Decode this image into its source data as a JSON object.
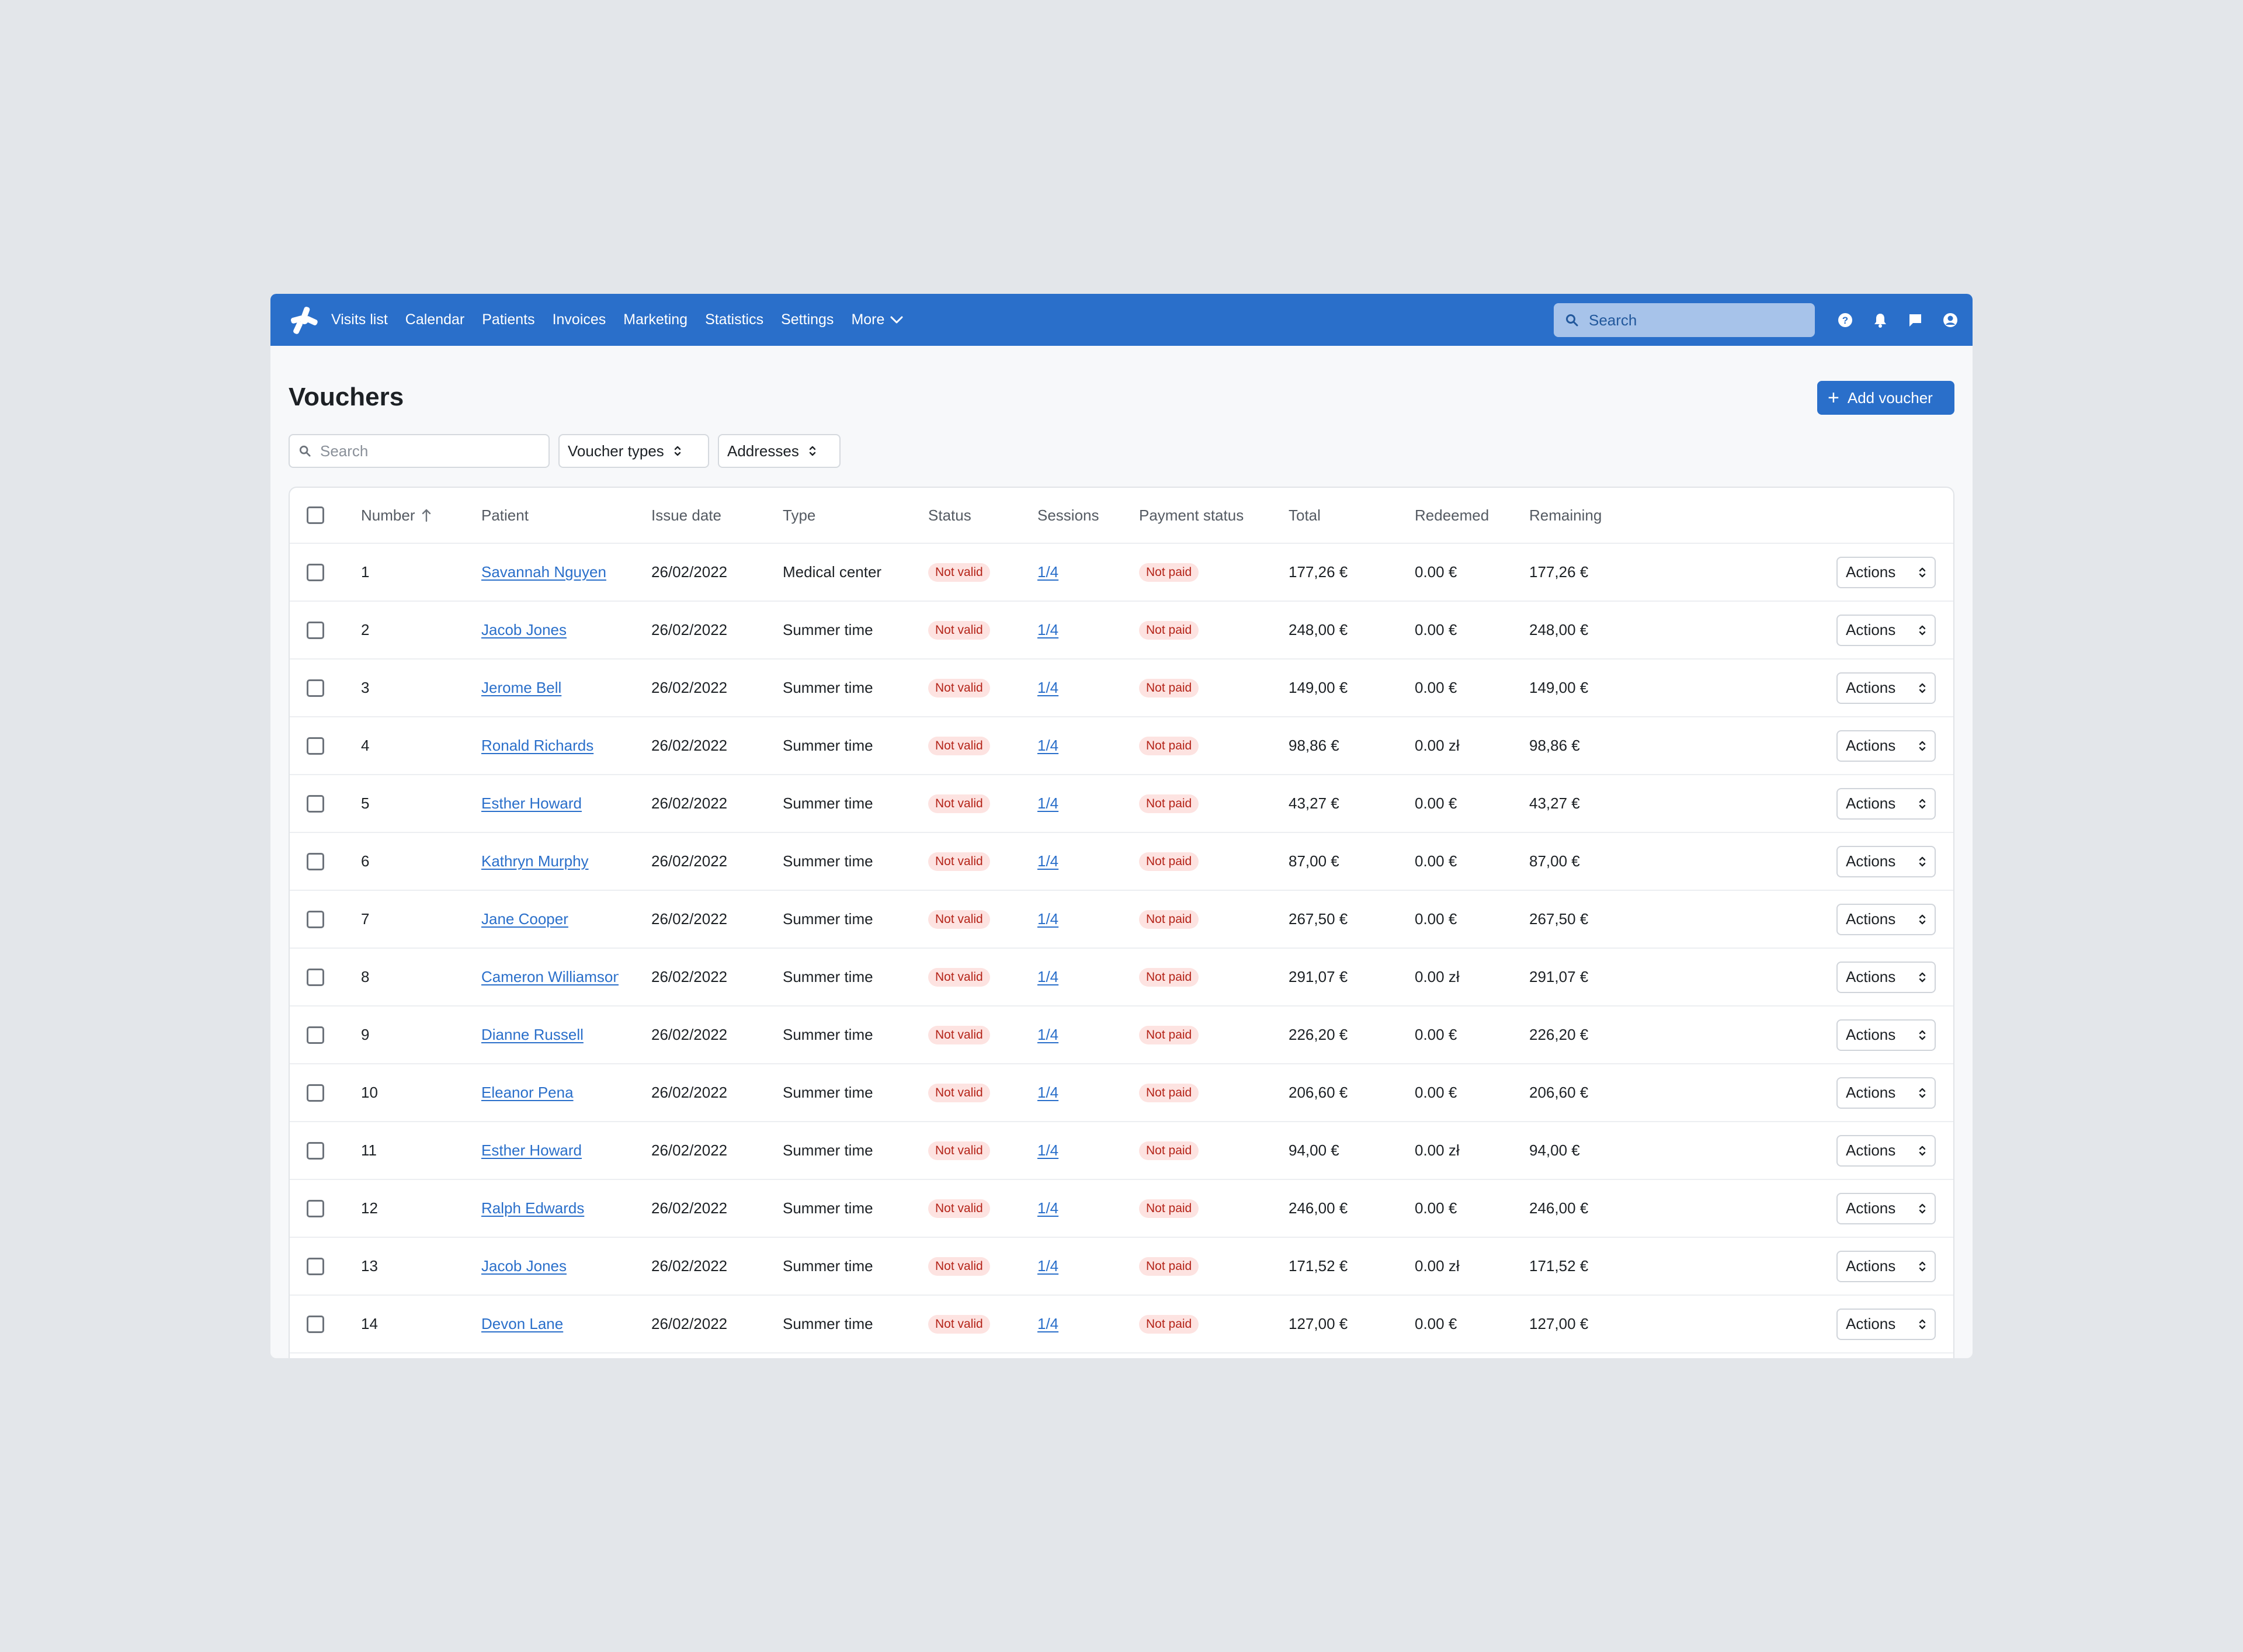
{
  "nav": {
    "items": [
      "Visits list",
      "Calendar",
      "Patients",
      "Invoices",
      "Marketing",
      "Statistics",
      "Settings"
    ],
    "more_label": "More",
    "search_placeholder": "Search"
  },
  "page": {
    "title": "Vouchers",
    "add_button": "Add voucher"
  },
  "filters": {
    "search_placeholder": "Search",
    "voucher_types": "Voucher types",
    "addresses": "Addresses"
  },
  "table": {
    "columns": {
      "number": "Number",
      "patient": "Patient",
      "issue_date": "Issue date",
      "type": "Type",
      "status": "Status",
      "sessions": "Sessions",
      "payment_status": "Payment status",
      "total": "Total",
      "redeemed": "Redeemed",
      "remaining": "Remaining"
    },
    "sort_column": "Number",
    "sort_direction": "ascending",
    "action_label": "Actions",
    "rows": [
      {
        "number": "1",
        "patient": "Savannah Nguyen",
        "issue_date": "26/02/2022",
        "type": "Medical center",
        "status": "Not valid",
        "sessions": "1/4",
        "payment_status": "Not paid",
        "total": "177,26 €",
        "redeemed": "0.00 €",
        "remaining": "177,26 €"
      },
      {
        "number": "2",
        "patient": "Jacob Jones",
        "issue_date": "26/02/2022",
        "type": "Summer time",
        "status": "Not valid",
        "sessions": "1/4",
        "payment_status": "Not paid",
        "total": "248,00 €",
        "redeemed": "0.00 €",
        "remaining": "248,00 €"
      },
      {
        "number": "3",
        "patient": "Jerome Bell",
        "issue_date": "26/02/2022",
        "type": "Summer time",
        "status": "Not valid",
        "sessions": "1/4",
        "payment_status": "Not paid",
        "total": "149,00 €",
        "redeemed": "0.00 €",
        "remaining": "149,00 €"
      },
      {
        "number": "4",
        "patient": "Ronald Richards",
        "issue_date": "26/02/2022",
        "type": "Summer time",
        "status": "Not valid",
        "sessions": "1/4",
        "payment_status": "Not paid",
        "total": "98,86 €",
        "redeemed": "0.00 zł",
        "remaining": "98,86 €"
      },
      {
        "number": "5",
        "patient": "Esther Howard",
        "issue_date": "26/02/2022",
        "type": "Summer time",
        "status": "Not valid",
        "sessions": "1/4",
        "payment_status": "Not paid",
        "total": "43,27 €",
        "redeemed": "0.00 €",
        "remaining": "43,27 €"
      },
      {
        "number": "6",
        "patient": "Kathryn Murphy",
        "issue_date": "26/02/2022",
        "type": "Summer time",
        "status": "Not valid",
        "sessions": "1/4",
        "payment_status": "Not paid",
        "total": "87,00 €",
        "redeemed": "0.00 €",
        "remaining": "87,00 €"
      },
      {
        "number": "7",
        "patient": "Jane Cooper",
        "issue_date": "26/02/2022",
        "type": "Summer time",
        "status": "Not valid",
        "sessions": "1/4",
        "payment_status": "Not paid",
        "total": "267,50 €",
        "redeemed": "0.00 €",
        "remaining": "267,50 €"
      },
      {
        "number": "8",
        "patient": "Cameron Williamson",
        "issue_date": "26/02/2022",
        "type": "Summer time",
        "status": "Not valid",
        "sessions": "1/4",
        "payment_status": "Not paid",
        "total": "291,07 €",
        "redeemed": "0.00 zł",
        "remaining": "291,07 €"
      },
      {
        "number": "9",
        "patient": "Dianne Russell",
        "issue_date": "26/02/2022",
        "type": "Summer time",
        "status": "Not valid",
        "sessions": "1/4",
        "payment_status": "Not paid",
        "total": "226,20 €",
        "redeemed": "0.00 €",
        "remaining": "226,20 €"
      },
      {
        "number": "10",
        "patient": "Eleanor Pena",
        "issue_date": "26/02/2022",
        "type": "Summer time",
        "status": "Not valid",
        "sessions": "1/4",
        "payment_status": "Not paid",
        "total": "206,60 €",
        "redeemed": "0.00 €",
        "remaining": "206,60 €"
      },
      {
        "number": "11",
        "patient": "Esther Howard",
        "issue_date": "26/02/2022",
        "type": "Summer time",
        "status": "Not valid",
        "sessions": "1/4",
        "payment_status": "Not paid",
        "total": "94,00 €",
        "redeemed": "0.00 zł",
        "remaining": "94,00 €"
      },
      {
        "number": "12",
        "patient": "Ralph Edwards",
        "issue_date": "26/02/2022",
        "type": "Summer time",
        "status": "Not valid",
        "sessions": "1/4",
        "payment_status": "Not paid",
        "total": "246,00 €",
        "redeemed": "0.00 €",
        "remaining": "246,00 €"
      },
      {
        "number": "13",
        "patient": "Jacob Jones",
        "issue_date": "26/02/2022",
        "type": "Summer time",
        "status": "Not valid",
        "sessions": "1/4",
        "payment_status": "Not paid",
        "total": "171,52 €",
        "redeemed": "0.00 zł",
        "remaining": "171,52 €"
      },
      {
        "number": "14",
        "patient": "Devon Lane",
        "issue_date": "26/02/2022",
        "type": "Summer time",
        "status": "Not valid",
        "sessions": "1/4",
        "payment_status": "Not paid",
        "total": "127,00 €",
        "redeemed": "0.00 €",
        "remaining": "127,00 €"
      }
    ]
  },
  "colors": {
    "brand": "#2a6fca",
    "badge_bg": "#fde3e1",
    "badge_text": "#b42318"
  },
  "icons": {
    "logo": "asterisk-logo-icon",
    "search": "search-icon",
    "help": "help-icon",
    "notifications": "bell-icon",
    "messages": "chat-icon",
    "account": "user-circle-icon"
  }
}
